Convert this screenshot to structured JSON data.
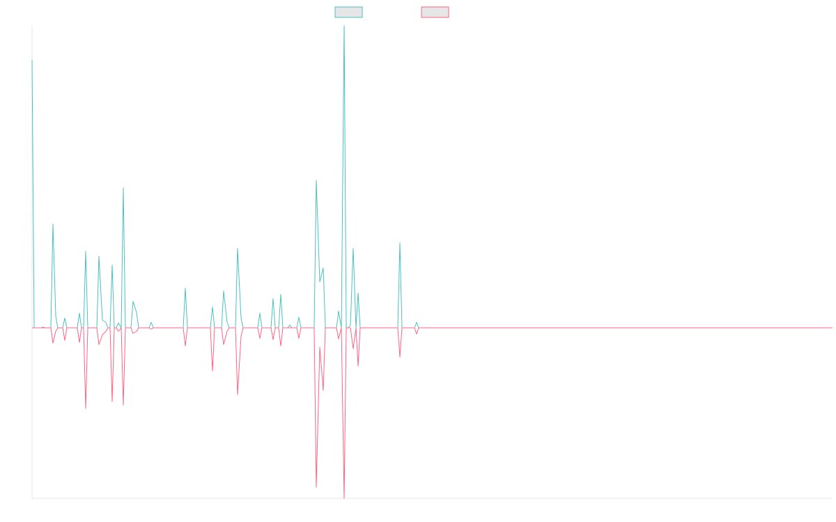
{
  "chart_data": {
    "type": "line",
    "xlim": [
      0,
      1149
    ],
    "ylim": [
      -245,
      434
    ],
    "x": [
      0,
      3,
      13,
      16,
      19,
      27,
      30,
      34,
      37,
      44,
      47,
      50,
      65,
      68,
      71,
      74,
      77,
      80,
      93,
      96,
      101,
      106,
      109,
      112,
      115,
      118,
      121,
      124,
      128,
      131,
      134,
      142,
      145,
      150,
      153,
      168,
      171,
      174,
      217,
      220,
      223,
      256,
      259,
      262,
      272,
      275,
      280,
      283,
      292,
      295,
      300,
      303,
      324,
      327,
      330,
      343,
      346,
      349,
      354,
      357,
      360,
      367,
      370,
      373,
      380,
      383,
      386,
      405,
      408,
      413,
      418,
      421,
      437,
      440,
      444,
      448,
      451,
      454,
      457,
      461,
      465,
      468,
      471,
      525,
      528,
      531,
      549,
      552,
      555,
      1149
    ],
    "series": [
      {
        "color": "#4bc0c0",
        "legend_fill": "#e6e6e6",
        "values": [
          385,
          0,
          0,
          1,
          0,
          0,
          149,
          17,
          0,
          0,
          14,
          0,
          0,
          21,
          0,
          0,
          110,
          0,
          0,
          103,
          11,
          8,
          0,
          0,
          90,
          0,
          0,
          7,
          0,
          201,
          0,
          0,
          38,
          22,
          0,
          0,
          8,
          0,
          0,
          57,
          0,
          0,
          30,
          0,
          0,
          53,
          8,
          0,
          0,
          114,
          14,
          0,
          0,
          21,
          0,
          0,
          42,
          0,
          0,
          48,
          0,
          0,
          4,
          0,
          0,
          15,
          0,
          0,
          212,
          66,
          86,
          0,
          0,
          24,
          0,
          434,
          0,
          0,
          4,
          114,
          0,
          50,
          0,
          0,
          122,
          0,
          0,
          8,
          0,
          0
        ]
      },
      {
        "color": "#ff6384",
        "legend_fill": "#e6e6e6",
        "values": [
          0,
          0,
          0,
          0,
          0,
          0,
          -22,
          -5,
          0,
          0,
          -18,
          0,
          0,
          -21,
          0,
          0,
          -116,
          0,
          0,
          -24,
          -10,
          -5,
          0,
          0,
          -106,
          0,
          0,
          -5,
          0,
          -111,
          0,
          0,
          -8,
          -5,
          0,
          0,
          -2,
          0,
          0,
          -26,
          0,
          0,
          -62,
          0,
          0,
          -24,
          -5,
          0,
          0,
          -96,
          -12,
          0,
          0,
          -15,
          0,
          0,
          -17,
          0,
          0,
          -26,
          0,
          0,
          0,
          0,
          0,
          -15,
          0,
          0,
          -229,
          -28,
          -90,
          0,
          0,
          -16,
          0,
          -245,
          0,
          0,
          0,
          -30,
          0,
          -55,
          0,
          0,
          -42,
          0,
          0,
          -9,
          0,
          0
        ]
      }
    ]
  }
}
